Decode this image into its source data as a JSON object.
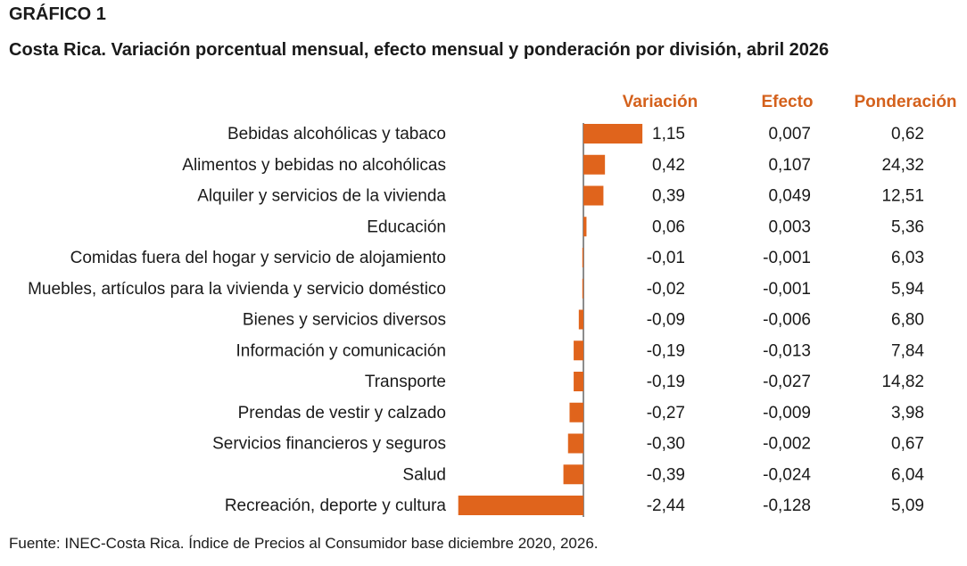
{
  "heading": {
    "label": "GRÁFICO 1",
    "title": "Costa Rica. Variación porcentual mensual, efecto mensual y ponderación por división, abril 2026"
  },
  "columns": {
    "variacion": "Variación",
    "efecto": "Efecto",
    "ponderacion": "Ponderación"
  },
  "source": "Fuente: INEC-Costa Rica. Índice de Precios al Consumidor base diciembre 2020, 2026.",
  "colors": {
    "bar": "#e0641c",
    "header": "#d4611c",
    "axis": "#8c8c8c"
  },
  "chart_data": {
    "type": "bar",
    "orientation": "horizontal",
    "categories": [
      "Bebidas alcohólicas y tabaco",
      "Alimentos y bebidas no alcohólicas",
      "Alquiler y servicios de la vivienda",
      "Educación",
      "Comidas fuera del hogar y servicio de alojamiento",
      "Muebles, artículos para la vivienda y servicio doméstico",
      "Bienes y servicios diversos",
      "Información y comunicación",
      "Transporte",
      "Prendas de vestir y calzado",
      "Servicios financieros y seguros",
      "Salud",
      "Recreación, deporte y cultura"
    ],
    "values": [
      1.15,
      0.42,
      0.39,
      0.06,
      -0.01,
      -0.02,
      -0.09,
      -0.19,
      -0.19,
      -0.27,
      -0.3,
      -0.39,
      -2.44
    ],
    "variacion_labels": [
      "1,15",
      "0,42",
      "0,39",
      "0,06",
      "-0,01",
      "-0,02",
      "-0,09",
      "-0,19",
      "-0,19",
      "-0,27",
      "-0,30",
      "-0,39",
      "-2,44"
    ],
    "efecto_labels": [
      "0,007",
      "0,107",
      "0,049",
      "0,003",
      "-0,001",
      "-0,001",
      "-0,006",
      "-0,013",
      "-0,027",
      "-0,009",
      "-0,002",
      "-0,024",
      "-0,128"
    ],
    "ponderacion_labels": [
      "0,62",
      "24,32",
      "12,51",
      "5,36",
      "6,03",
      "5,94",
      "6,80",
      "7,84",
      "14,82",
      "3,98",
      "0,67",
      "6,04",
      "5,09"
    ],
    "xlim": [
      -2.44,
      1.15
    ],
    "grid": false,
    "legend": "none"
  }
}
